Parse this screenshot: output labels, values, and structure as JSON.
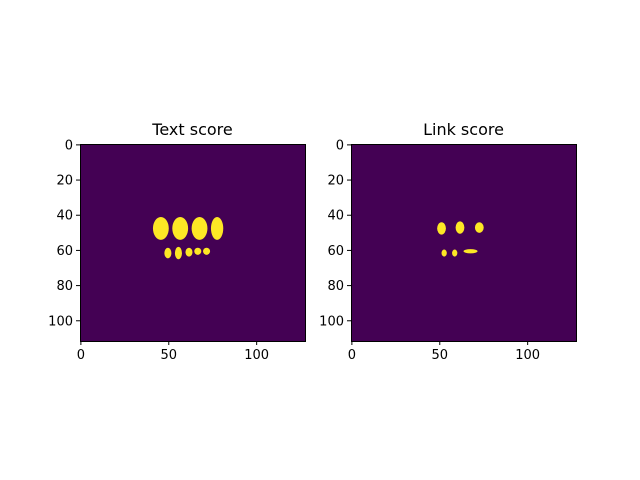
{
  "figure": {
    "background": "#ffffff"
  },
  "chart_data": [
    {
      "type": "heatmap",
      "title": "Text score",
      "xlabel": "",
      "ylabel": "",
      "image_width": 128,
      "image_height": 112,
      "xlim": [
        -0.5,
        127.5
      ],
      "ylim": [
        111.5,
        -0.5
      ],
      "xticks": [
        0,
        50,
        100
      ],
      "yticks": [
        0,
        20,
        40,
        60,
        80,
        100
      ],
      "xtick_labels": [
        "0",
        "50",
        "100"
      ],
      "ytick_labels": [
        "0",
        "20",
        "40",
        "60",
        "80",
        "100"
      ],
      "colormap": "viridis",
      "background_color": "#440154",
      "blob_color": "#fde725",
      "blobs": [
        {
          "cx": 45.5,
          "cy": 47.5,
          "rx": 4.5,
          "ry": 6.5
        },
        {
          "cx": 56.5,
          "cy": 47.5,
          "rx": 4.5,
          "ry": 6.5
        },
        {
          "cx": 67.5,
          "cy": 47.5,
          "rx": 4.5,
          "ry": 6.5
        },
        {
          "cx": 77.5,
          "cy": 47.5,
          "rx": 3.5,
          "ry": 6.5
        },
        {
          "cx": 49.5,
          "cy": 61.5,
          "rx": 2.0,
          "ry": 3.0
        },
        {
          "cx": 55.5,
          "cy": 61.5,
          "rx": 2.0,
          "ry": 3.5
        },
        {
          "cx": 61.5,
          "cy": 61.0,
          "rx": 2.0,
          "ry": 2.5
        },
        {
          "cx": 66.5,
          "cy": 60.5,
          "rx": 2.0,
          "ry": 2.0
        },
        {
          "cx": 71.5,
          "cy": 60.5,
          "rx": 2.0,
          "ry": 2.0
        }
      ]
    },
    {
      "type": "heatmap",
      "title": "Link score",
      "xlabel": "",
      "ylabel": "",
      "image_width": 128,
      "image_height": 112,
      "xlim": [
        -0.5,
        127.5
      ],
      "ylim": [
        111.5,
        -0.5
      ],
      "xticks": [
        0,
        50,
        100
      ],
      "yticks": [
        0,
        20,
        40,
        60,
        80,
        100
      ],
      "xtick_labels": [
        "0",
        "50",
        "100"
      ],
      "ytick_labels": [
        "0",
        "20",
        "40",
        "60",
        "80",
        "100"
      ],
      "colormap": "viridis",
      "background_color": "#440154",
      "blob_color": "#fde725",
      "blobs": [
        {
          "cx": 51.0,
          "cy": 47.5,
          "rx": 2.5,
          "ry": 3.5
        },
        {
          "cx": 61.5,
          "cy": 47.0,
          "rx": 2.5,
          "ry": 3.5
        },
        {
          "cx": 72.5,
          "cy": 47.0,
          "rx": 2.5,
          "ry": 3.0
        },
        {
          "cx": 52.5,
          "cy": 61.5,
          "rx": 1.5,
          "ry": 2.0
        },
        {
          "cx": 58.5,
          "cy": 61.5,
          "rx": 1.5,
          "ry": 2.0
        },
        {
          "cx": 67.5,
          "cy": 60.5,
          "rx": 4.0,
          "ry": 1.2
        }
      ]
    }
  ]
}
